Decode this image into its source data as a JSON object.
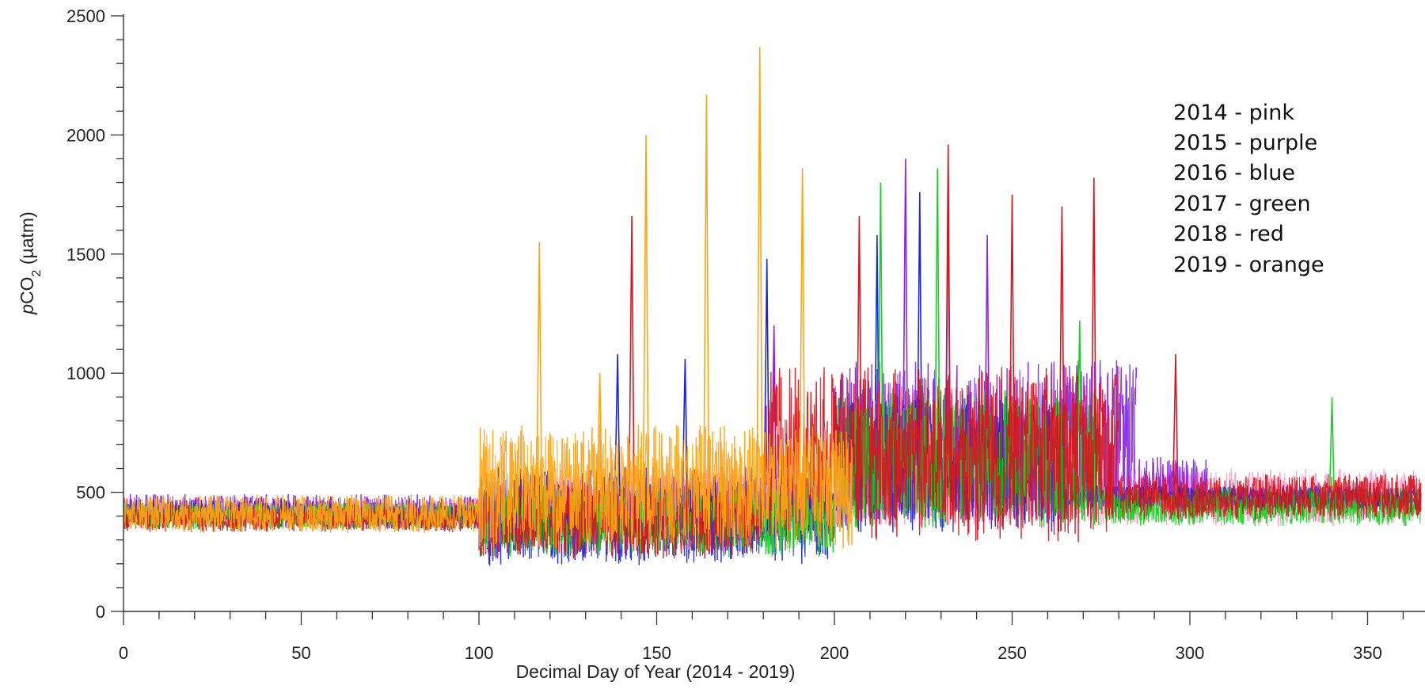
{
  "chart_data": {
    "type": "line",
    "title": "",
    "xlabel": "Decimal Day of Year (2014 - 2019)",
    "ylabel_parts": {
      "italic": "p",
      "main": "CO",
      "subscript": "2",
      "unit": " (µatm)"
    },
    "xlim": [
      0,
      365
    ],
    "ylim": [
      0,
      2500
    ],
    "x_ticks": [
      0,
      50,
      100,
      150,
      200,
      250,
      300,
      350
    ],
    "y_ticks": [
      0,
      500,
      1000,
      1500,
      2000,
      2500
    ],
    "x_minor_step": 10,
    "y_minor_step": 100,
    "grid": false,
    "legend_position": "top-right",
    "legend_lines": [
      "2014 - pink",
      "2015 - purple",
      "2016 - blue",
      "2017 - green",
      "2018 - red",
      "2019 - orange"
    ],
    "series": [
      {
        "color": "#ff9cc8",
        "segments": [
          [
            0,
            110,
            420,
            60
          ],
          [
            110,
            365,
            480,
            150
          ]
        ],
        "spikes": []
      },
      {
        "color": "#8a25e6",
        "segments": [
          [
            0,
            100,
            420,
            90
          ],
          [
            100,
            200,
            420,
            180
          ],
          [
            200,
            285,
            720,
            420
          ],
          [
            285,
            305,
            520,
            160
          ],
          [
            305,
            365,
            470,
            60
          ]
        ],
        "spikes": [
          [
            220,
            1900
          ],
          [
            232,
            1720
          ],
          [
            243,
            1580
          ],
          [
            183,
            1200
          ]
        ]
      },
      {
        "color": "#1a24e0",
        "segments": [
          [
            0,
            60,
            420,
            60
          ],
          [
            60,
            100,
            400,
            70
          ],
          [
            100,
            200,
            400,
            260
          ],
          [
            200,
            265,
            620,
            360
          ],
          [
            265,
            365,
            480,
            60
          ]
        ],
        "spikes": [
          [
            139,
            1080
          ],
          [
            158,
            1060
          ],
          [
            181,
            1480
          ],
          [
            212,
            1580
          ],
          [
            224,
            1760
          ]
        ]
      },
      {
        "color": "#12d41f",
        "segments": [
          [
            0,
            100,
            400,
            70
          ],
          [
            100,
            200,
            380,
            190
          ],
          [
            200,
            275,
            640,
            360
          ],
          [
            275,
            365,
            440,
            100
          ]
        ],
        "spikes": [
          [
            213,
            1800
          ],
          [
            229,
            1860
          ],
          [
            340,
            900
          ],
          [
            269,
            1220
          ]
        ]
      },
      {
        "color": "#d7151f",
        "segments": [
          [
            0,
            100,
            390,
            70
          ],
          [
            100,
            180,
            380,
            200
          ],
          [
            180,
            280,
            660,
            460
          ],
          [
            280,
            365,
            480,
            120
          ]
        ],
        "spikes": [
          [
            143,
            1660
          ],
          [
            207,
            1660
          ],
          [
            232,
            1960
          ],
          [
            250,
            1750
          ],
          [
            273,
            1820
          ],
          [
            296,
            1080
          ],
          [
            264,
            1700
          ]
        ]
      },
      {
        "color": "#ffa412",
        "segments": [
          [
            0,
            100,
            410,
            100
          ],
          [
            100,
            205,
            520,
            330
          ]
        ],
        "spikes": [
          [
            117,
            1550
          ],
          [
            147,
            2000
          ],
          [
            164,
            2170
          ],
          [
            179,
            2370
          ],
          [
            191,
            1860
          ],
          [
            134,
            1000
          ]
        ]
      }
    ]
  }
}
